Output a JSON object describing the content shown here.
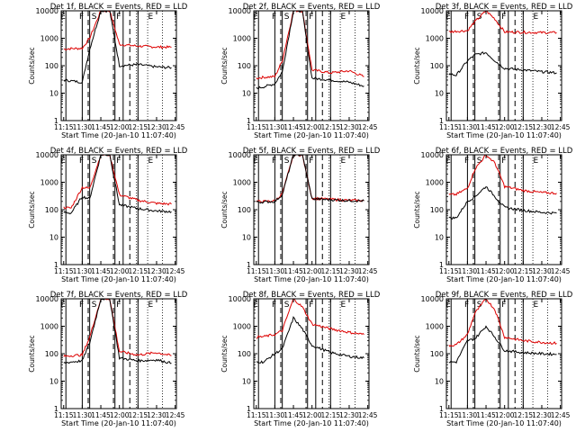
{
  "chart_data": {
    "type": "line",
    "layout": "3x3 grid of panels",
    "yscale": "log",
    "ylim": [
      1,
      10000
    ],
    "ytick_values": [
      1,
      10,
      100,
      1000,
      10000
    ],
    "ytick_labels": [
      "1",
      "10",
      "100",
      "1000",
      "10000"
    ],
    "xlim": [
      "11:13",
      "12:46"
    ],
    "xtick_labels": [
      "11:15",
      "11:30",
      "11:45",
      "12:00",
      "12:15",
      "12:30",
      "12:45"
    ],
    "xlabel": "Start Time (20-Jan-10 11:07:40)",
    "ylabel": "Counts/sec",
    "colors": {
      "events": "#000000",
      "lld": "#dd0000"
    },
    "panels": [
      {
        "title": "Det 1f, BLACK = Events, RED = LLD",
        "events": [
          [
            11.25,
            30
          ],
          [
            11.35,
            28
          ],
          [
            11.5,
            25
          ],
          [
            11.6,
            400
          ],
          [
            11.75,
            10000
          ],
          [
            11.87,
            10000
          ],
          [
            12.0,
            100
          ],
          [
            12.25,
            110
          ],
          [
            12.5,
            90
          ],
          [
            12.7,
            85
          ]
        ],
        "lld": [
          [
            11.25,
            400
          ],
          [
            11.35,
            420
          ],
          [
            11.5,
            430
          ],
          [
            11.6,
            1000
          ],
          [
            11.75,
            10000
          ],
          [
            11.87,
            10000
          ],
          [
            12.0,
            600
          ],
          [
            12.25,
            520
          ],
          [
            12.5,
            480
          ],
          [
            12.7,
            470
          ]
        ]
      },
      {
        "title": "Det 2f, BLACK = Events, RED = LLD",
        "events": [
          [
            11.25,
            15
          ],
          [
            11.35,
            17
          ],
          [
            11.5,
            22
          ],
          [
            11.6,
            60
          ],
          [
            11.75,
            10000
          ],
          [
            11.87,
            10000
          ],
          [
            12.0,
            35
          ],
          [
            12.25,
            30
          ],
          [
            12.5,
            25
          ],
          [
            12.7,
            18
          ]
        ],
        "lld": [
          [
            11.25,
            35
          ],
          [
            11.35,
            38
          ],
          [
            11.5,
            40
          ],
          [
            11.6,
            150
          ],
          [
            11.75,
            10000
          ],
          [
            11.87,
            10000
          ],
          [
            12.0,
            70
          ],
          [
            12.25,
            55
          ],
          [
            12.5,
            65
          ],
          [
            12.7,
            40
          ]
        ]
      },
      {
        "title": "Det 3f, BLACK = Events, RED = LLD",
        "events": [
          [
            11.25,
            50
          ],
          [
            11.35,
            45
          ],
          [
            11.5,
            150
          ],
          [
            11.6,
            250
          ],
          [
            11.75,
            300
          ],
          [
            11.87,
            150
          ],
          [
            12.0,
            80
          ],
          [
            12.25,
            70
          ],
          [
            12.5,
            60
          ],
          [
            12.7,
            55
          ]
        ],
        "lld": [
          [
            11.25,
            1700
          ],
          [
            11.35,
            1800
          ],
          [
            11.5,
            1900
          ],
          [
            11.6,
            4000
          ],
          [
            11.75,
            10000
          ],
          [
            11.87,
            5000
          ],
          [
            12.0,
            1700
          ],
          [
            12.25,
            1650
          ],
          [
            12.5,
            1600
          ],
          [
            12.7,
            1600
          ]
        ]
      },
      {
        "title": "Det 4f, BLACK = Events, RED = LLD",
        "events": [
          [
            11.25,
            80
          ],
          [
            11.35,
            75
          ],
          [
            11.5,
            300
          ],
          [
            11.6,
            250
          ],
          [
            11.75,
            10000
          ],
          [
            11.87,
            10000
          ],
          [
            12.0,
            150
          ],
          [
            12.25,
            110
          ],
          [
            12.5,
            90
          ],
          [
            12.7,
            85
          ]
        ],
        "lld": [
          [
            11.25,
            120
          ],
          [
            11.35,
            115
          ],
          [
            11.5,
            650
          ],
          [
            11.6,
            600
          ],
          [
            11.75,
            10000
          ],
          [
            11.87,
            10000
          ],
          [
            12.0,
            350
          ],
          [
            12.25,
            220
          ],
          [
            12.5,
            170
          ],
          [
            12.7,
            160
          ]
        ]
      },
      {
        "title": "Det 5f, BLACK = Events, RED = LLD",
        "events": [
          [
            11.25,
            190
          ],
          [
            11.35,
            190
          ],
          [
            11.5,
            200
          ],
          [
            11.6,
            350
          ],
          [
            11.75,
            10000
          ],
          [
            11.87,
            10000
          ],
          [
            12.0,
            250
          ],
          [
            12.25,
            230
          ],
          [
            12.5,
            215
          ],
          [
            12.7,
            210
          ]
        ],
        "lld": [
          [
            11.25,
            200
          ],
          [
            11.35,
            200
          ],
          [
            11.5,
            210
          ],
          [
            11.6,
            380
          ],
          [
            11.75,
            10000
          ],
          [
            11.87,
            10000
          ],
          [
            12.0,
            260
          ],
          [
            12.25,
            240
          ],
          [
            12.5,
            220
          ],
          [
            12.7,
            215
          ]
        ]
      },
      {
        "title": "Det 6f, BLACK = Events, RED = LLD",
        "events": [
          [
            11.25,
            50
          ],
          [
            11.35,
            50
          ],
          [
            11.5,
            200
          ],
          [
            11.6,
            300
          ],
          [
            11.75,
            700
          ],
          [
            11.87,
            300
          ],
          [
            12.0,
            120
          ],
          [
            12.25,
            95
          ],
          [
            12.5,
            80
          ],
          [
            12.7,
            75
          ]
        ],
        "lld": [
          [
            11.25,
            350
          ],
          [
            11.35,
            360
          ],
          [
            11.5,
            600
          ],
          [
            11.6,
            3000
          ],
          [
            11.75,
            10000
          ],
          [
            11.87,
            5000
          ],
          [
            12.0,
            700
          ],
          [
            12.25,
            500
          ],
          [
            12.5,
            420
          ],
          [
            12.7,
            400
          ]
        ]
      },
      {
        "title": "Det 7f, BLACK = Events, RED = LLD",
        "events": [
          [
            11.25,
            45
          ],
          [
            11.35,
            50
          ],
          [
            11.5,
            55
          ],
          [
            11.6,
            250
          ],
          [
            11.75,
            10000
          ],
          [
            11.87,
            10000
          ],
          [
            12.0,
            70
          ],
          [
            12.25,
            55
          ],
          [
            12.5,
            60
          ],
          [
            12.7,
            45
          ]
        ],
        "lld": [
          [
            11.25,
            80
          ],
          [
            11.35,
            85
          ],
          [
            11.5,
            90
          ],
          [
            11.6,
            400
          ],
          [
            11.75,
            10000
          ],
          [
            11.87,
            10000
          ],
          [
            12.0,
            120
          ],
          [
            12.25,
            90
          ],
          [
            12.5,
            110
          ],
          [
            12.7,
            85
          ]
        ]
      },
      {
        "title": "Det 8f, BLACK = Events, RED = LLD",
        "events": [
          [
            11.25,
            50
          ],
          [
            11.35,
            50
          ],
          [
            11.5,
            100
          ],
          [
            11.6,
            150
          ],
          [
            11.75,
            2000
          ],
          [
            11.87,
            800
          ],
          [
            12.0,
            200
          ],
          [
            12.25,
            110
          ],
          [
            12.5,
            80
          ],
          [
            12.7,
            70
          ]
        ],
        "lld": [
          [
            11.25,
            400
          ],
          [
            11.35,
            420
          ],
          [
            11.5,
            500
          ],
          [
            11.6,
            700
          ],
          [
            11.75,
            10000
          ],
          [
            11.87,
            5000
          ],
          [
            12.0,
            1200
          ],
          [
            12.25,
            800
          ],
          [
            12.5,
            600
          ],
          [
            12.7,
            500
          ]
        ]
      },
      {
        "title": "Det 9f, BLACK = Events, RED = LLD",
        "events": [
          [
            11.25,
            50
          ],
          [
            11.35,
            50
          ],
          [
            11.5,
            300
          ],
          [
            11.6,
            350
          ],
          [
            11.75,
            1000
          ],
          [
            11.87,
            400
          ],
          [
            12.0,
            130
          ],
          [
            12.25,
            110
          ],
          [
            12.5,
            100
          ],
          [
            12.7,
            95
          ]
        ],
        "lld": [
          [
            11.25,
            200
          ],
          [
            11.35,
            210
          ],
          [
            11.5,
            500
          ],
          [
            11.6,
            3000
          ],
          [
            11.75,
            10000
          ],
          [
            11.87,
            4000
          ],
          [
            12.0,
            400
          ],
          [
            12.25,
            300
          ],
          [
            12.5,
            260
          ],
          [
            12.7,
            240
          ]
        ]
      }
    ],
    "markers": {
      "solid": [
        11.28,
        11.5,
        11.6,
        11.94,
        12.05,
        12.25
      ],
      "dashed": [
        11.58,
        11.92,
        12.14
      ],
      "dotted": [
        12.23,
        12.38,
        12.58
      ],
      "letters": [
        {
          "t": 11.24,
          "label": "E"
        },
        {
          "t": 11.49,
          "label": "F"
        },
        {
          "t": 11.66,
          "label": "S"
        },
        {
          "t": 11.99,
          "label": "F"
        },
        {
          "t": 12.42,
          "label": "E"
        }
      ]
    }
  }
}
